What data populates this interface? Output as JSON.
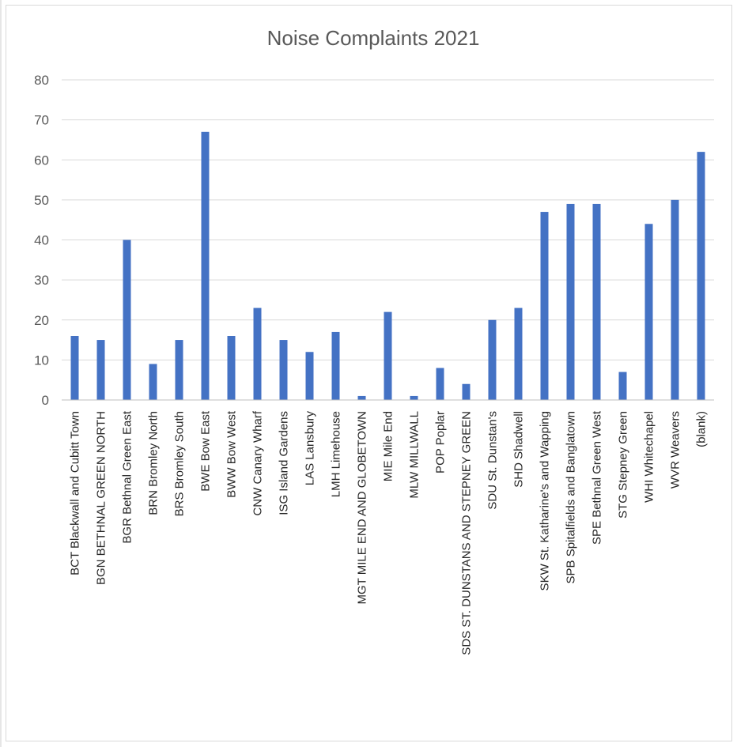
{
  "chart_data": {
    "type": "bar",
    "title": "Noise Complaints 2021",
    "xlabel": "",
    "ylabel": "",
    "ylim": [
      0,
      80
    ],
    "yticks": [
      0,
      10,
      20,
      30,
      40,
      50,
      60,
      70,
      80
    ],
    "grid": true,
    "legend": "none",
    "colors": {
      "bar": "#4472C4",
      "grid": "#d9d9d9",
      "axis": "#bfbfbf",
      "text": "#595959"
    },
    "categories": [
      "BCT  Blackwall and Cubitt Town",
      "BGN  BETHNAL GREEN NORTH",
      "BGR  Bethnal Green East",
      "BRN  Bromley North",
      "BRS  Bromley South",
      "BWE  Bow East",
      "BWW  Bow West",
      "CNW  Canary Wharf",
      "ISG  Island Gardens",
      "LAS  Lansbury",
      "LMH  Limehouse",
      "MGT  MILE END AND GLOBETOWN",
      "MIE  Mile End",
      "MLW  MILLWALL",
      "POP  Poplar",
      "SDS  ST. DUNSTANS AND STEPNEY GREEN",
      "SDU  St. Dunstan's",
      "SHD  Shadwell",
      "SKW  St. Katharine's and Wapping",
      "SPB  Spitalfields and Banglatown",
      "SPE  Bethnal Green West",
      "STG  Stepney Green",
      "WHI  Whitechapel",
      "WVR  Weavers",
      "(blank)"
    ],
    "values": [
      16,
      15,
      40,
      9,
      15,
      67,
      16,
      23,
      15,
      12,
      17,
      1,
      22,
      1,
      8,
      4,
      20,
      23,
      47,
      49,
      49,
      7,
      44,
      50,
      62
    ]
  }
}
